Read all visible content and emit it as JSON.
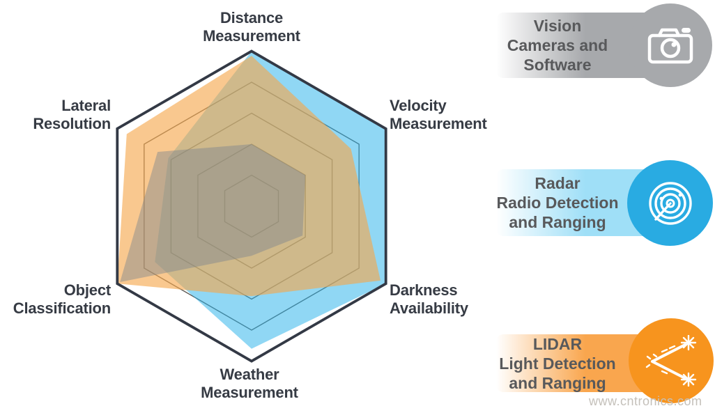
{
  "chart_data": {
    "type": "radar",
    "axes": [
      "Distance Measurement",
      "Velocity Measurement",
      "Darkness Availability",
      "Weather Measurement",
      "Object Classification",
      "Lateral Resolution"
    ],
    "scale": {
      "min": 0,
      "max": 5,
      "rings": [
        1,
        2,
        3,
        4,
        5
      ]
    },
    "grid": true,
    "spokes": false,
    "legend_position": "right",
    "series": [
      {
        "key": "vision",
        "name": "Vision Cameras and Software",
        "fill": "rgba(125,132,142,0.45)",
        "color": "#A7A9AC",
        "values": [
          2.0,
          2.0,
          1.9,
          1.6,
          4.9,
          3.5
        ]
      },
      {
        "key": "radar",
        "name": "Radar Radio Detection and Ranging",
        "fill": "rgba(33,176,233,0.5)",
        "color": "#29ABE2",
        "values": [
          5,
          5,
          5,
          4.6,
          3.6,
          3.1
        ]
      },
      {
        "key": "lidar",
        "name": "LIDAR Light Detection and Ranging",
        "fill": "rgba(246,166,74,0.62)",
        "color": "#F7941E",
        "values": [
          4.85,
          3.7,
          4.8,
          2.9,
          5,
          4.65
        ]
      }
    ],
    "draw_order": [
      "radar",
      "lidar",
      "vision"
    ]
  },
  "labels": {
    "distance": "Distance\nMeasurement",
    "velocity": "Velocity\nMeasurement",
    "darkness": "Darkness\nAvailability",
    "weather": "Weather\nMeasurement",
    "object": "Object\nClassification",
    "lateral": "Lateral\nResolution"
  },
  "legend": {
    "items": [
      {
        "title": "Vision\nCameras and\nSoftware",
        "icon": "camera-icon",
        "pill_color": "#A7A9AC",
        "circle_color": "#A7A9AC"
      },
      {
        "title": "Radar\nRadio Detection\nand Ranging",
        "icon": "radar-icon",
        "pill_color": "#9FDFF7",
        "circle_color": "#29ABE2"
      },
      {
        "title": "LIDAR\nLight Detection\nand Ranging",
        "icon": "lidar-icon",
        "pill_color": "#F9A64E",
        "circle_color": "#F7941E"
      }
    ]
  },
  "watermark": {
    "text": "www.cntronics.com"
  },
  "colors": {
    "background": "#FFFFFF",
    "axis_outline": "#333945",
    "grid_line": "#5E5A54",
    "label_text": "#363B44",
    "badge_text": "#58595B",
    "watermark_text": "#C4C0BA"
  }
}
